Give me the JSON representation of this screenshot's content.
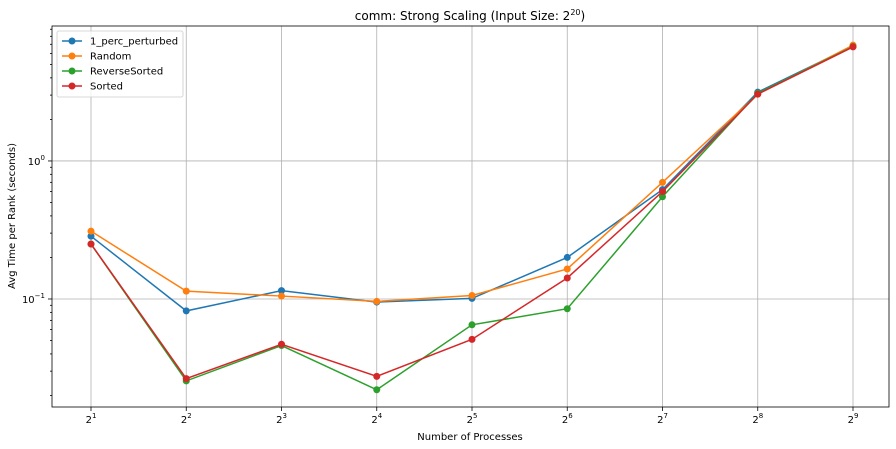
{
  "chart_data": {
    "type": "line",
    "title": "comm: Strong Scaling (Input Size: 2",
    "title_exp": "20",
    "title_end": ")",
    "xlabel": "Number of Processes",
    "ylabel": "Avg Time per Rank (seconds)",
    "x_scale": "log2",
    "y_scale": "log10",
    "x": [
      2,
      4,
      8,
      16,
      32,
      64,
      128,
      256,
      512
    ],
    "x_tick_base": "2",
    "x_tick_exps": [
      "1",
      "2",
      "3",
      "4",
      "5",
      "6",
      "7",
      "8",
      "9"
    ],
    "y_ticks": [
      {
        "value": 0.1,
        "base": "10",
        "exp": "−1"
      },
      {
        "value": 1,
        "base": "10",
        "exp": "0"
      }
    ],
    "ylim": [
      0.0165,
      9.5
    ],
    "grid": true,
    "legend_position": "top-left",
    "series": [
      {
        "name": "1_perc_perturbed",
        "color": "#1f77b4",
        "values": [
          0.285,
          0.082,
          0.115,
          0.095,
          0.101,
          0.2,
          0.62,
          3.15,
          6.8
        ]
      },
      {
        "name": "Random",
        "color": "#ff7f0e",
        "values": [
          0.31,
          0.114,
          0.105,
          0.096,
          0.106,
          0.165,
          0.7,
          3.05,
          6.9
        ]
      },
      {
        "name": "ReverseSorted",
        "color": "#2ca02c",
        "values": [
          0.25,
          0.0255,
          0.046,
          0.022,
          0.065,
          0.085,
          0.55,
          3.1,
          6.75
        ]
      },
      {
        "name": "Sorted",
        "color": "#d62728",
        "values": [
          0.25,
          0.0265,
          0.047,
          0.0275,
          0.051,
          0.142,
          0.6,
          3.05,
          6.7
        ]
      }
    ]
  }
}
